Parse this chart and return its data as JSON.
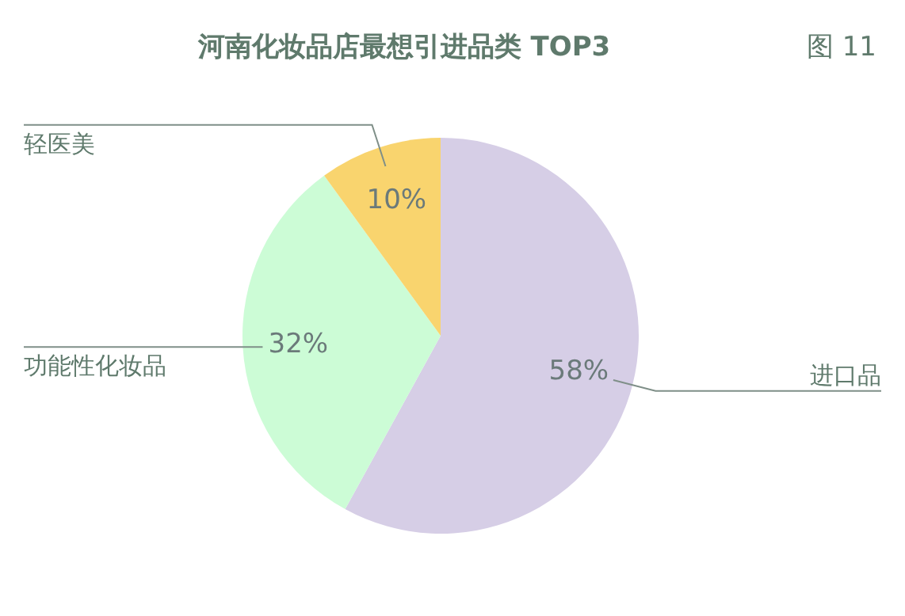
{
  "chart_data": {
    "type": "pie",
    "title": "河南化妆品店最想引进品类 TOP3",
    "categories": [
      "进口品",
      "功能性化妆品",
      "轻医美"
    ],
    "values": [
      58,
      32,
      10
    ],
    "colors": [
      "#d6cee6",
      "#ccfcd6",
      "#f9d46e"
    ],
    "value_labels": [
      "58%",
      "32%",
      "10%"
    ],
    "annotations": [
      "图 11"
    ]
  }
}
